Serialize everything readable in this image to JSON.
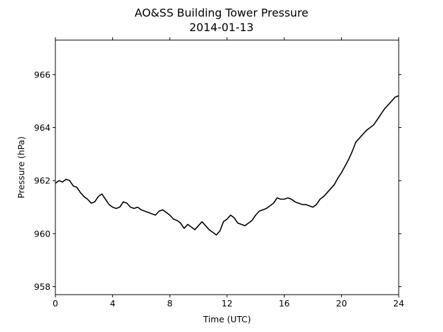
{
  "chart_data": {
    "type": "line",
    "title": "AO&SS Building Tower Pressure",
    "subtitle": "2014-01-13",
    "xlabel": "Time (UTC)",
    "ylabel": "Pressure (hPa)",
    "xlim": [
      0,
      24
    ],
    "ylim": [
      957.7,
      967.3
    ],
    "xticks": [
      0,
      4,
      8,
      12,
      16,
      20,
      24
    ],
    "yticks": [
      958,
      960,
      962,
      964,
      966
    ],
    "grid": false,
    "line_color": "#000000",
    "series": [
      {
        "x": [
          0,
          0.25,
          0.5,
          0.75,
          1,
          1.25,
          1.5,
          1.75,
          2,
          2.25,
          2.5,
          2.75,
          3,
          3.25,
          3.5,
          3.75,
          4,
          4.25,
          4.5,
          4.75,
          5,
          5.25,
          5.5,
          5.75,
          6,
          6.25,
          6.5,
          6.75,
          7,
          7.25,
          7.5,
          7.75,
          8,
          8.25,
          8.5,
          8.75,
          9,
          9.25,
          9.5,
          9.75,
          10,
          10.25,
          10.5,
          10.75,
          11,
          11.25,
          11.5,
          11.75,
          12,
          12.25,
          12.5,
          12.75,
          13,
          13.25,
          13.5,
          13.75,
          14,
          14.25,
          14.5,
          14.75,
          15,
          15.25,
          15.5,
          15.75,
          16,
          16.25,
          16.5,
          16.75,
          17,
          17.25,
          17.5,
          17.75,
          18,
          18.25,
          18.5,
          18.75,
          19,
          19.25,
          19.5,
          19.75,
          20,
          20.25,
          20.5,
          20.75,
          21,
          21.25,
          21.5,
          21.75,
          22,
          22.25,
          22.5,
          22.75,
          23,
          23.25,
          23.5,
          23.75,
          24
        ],
        "y": [
          961.9,
          962.0,
          961.95,
          962.05,
          962.0,
          961.8,
          961.75,
          961.55,
          961.4,
          961.3,
          961.15,
          961.2,
          961.4,
          961.5,
          961.3,
          961.1,
          961.0,
          960.95,
          961.0,
          961.2,
          961.15,
          961.0,
          960.95,
          961.0,
          960.9,
          960.85,
          960.8,
          960.75,
          960.7,
          960.85,
          960.9,
          960.8,
          960.7,
          960.55,
          960.5,
          960.4,
          960.2,
          960.35,
          960.25,
          960.15,
          960.3,
          960.45,
          960.3,
          960.15,
          960.05,
          959.95,
          960.1,
          960.45,
          960.55,
          960.7,
          960.6,
          960.4,
          960.35,
          960.3,
          960.4,
          960.5,
          960.7,
          960.85,
          960.9,
          960.95,
          961.05,
          961.15,
          961.35,
          961.3,
          961.3,
          961.35,
          961.3,
          961.2,
          961.15,
          961.1,
          961.1,
          961.05,
          961.0,
          961.1,
          961.3,
          961.4,
          961.55,
          961.7,
          961.85,
          962.1,
          962.3,
          962.55,
          962.8,
          963.1,
          963.45,
          963.6,
          963.75,
          963.9,
          964.0,
          964.1,
          964.3,
          964.5,
          964.7,
          964.85,
          965.0,
          965.15,
          965.2
        ]
      }
    ]
  }
}
